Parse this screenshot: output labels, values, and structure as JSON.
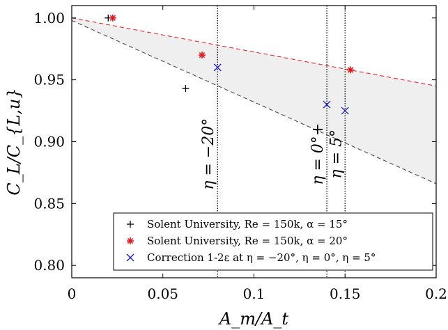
{
  "chart_data": {
    "type": "scatter",
    "xlabel": "A_m/A_t",
    "ylabel": "C_L/C_{L,u}",
    "xlim": [
      0,
      0.2
    ],
    "ylim": [
      0.79,
      1.01
    ],
    "x_ticks": [
      0,
      0.05,
      0.1,
      0.15,
      0.2
    ],
    "x_tick_labels": [
      "0",
      "0.05",
      "0.1",
      "0.15",
      "0.2"
    ],
    "y_ticks": [
      0.8,
      0.85,
      0.9,
      0.95,
      1.0
    ],
    "y_tick_labels": [
      "0.80",
      "0.85",
      "0.90",
      "0.95",
      "1.00"
    ],
    "grid": false,
    "legend_position": "bottom-right",
    "series": [
      {
        "name": "Solent University, Re = 150k, α = 15°",
        "marker": "plus",
        "color": "#000000",
        "points": [
          {
            "x": 0.02,
            "y": 1.0
          },
          {
            "x": 0.0625,
            "y": 0.943
          }
        ]
      },
      {
        "name": "Solent University, Re = 150k, α = 20°",
        "marker": "asterisk",
        "color": "#e8141c",
        "points": [
          {
            "x": 0.0225,
            "y": 1.0
          },
          {
            "x": 0.0715,
            "y": 0.97
          },
          {
            "x": 0.153,
            "y": 0.958
          }
        ]
      },
      {
        "name": "Correction 1-2ε at η = −20°, η = 0°, η = 5°",
        "marker": "x",
        "color": "#1c1cd0",
        "points": [
          {
            "x": 0.08,
            "y": 0.96
          },
          {
            "x": 0.14,
            "y": 0.93
          },
          {
            "x": 0.15,
            "y": 0.925
          }
        ]
      }
    ],
    "lines": [
      {
        "color": "#e8141c",
        "style": "dashed",
        "x": [
          0,
          0.2
        ],
        "y": [
          1.0,
          0.945
        ]
      },
      {
        "color": "#3a3a3a",
        "style": "dashed",
        "x": [
          0,
          0.2
        ],
        "y": [
          0.998,
          0.866
        ]
      }
    ],
    "shaded_region": {
      "between": "lines",
      "color": "#efefef"
    },
    "vertical_lines": [
      {
        "x": 0.08,
        "label": "η = −20°"
      },
      {
        "x": 0.14,
        "label": "η = 0°+"
      },
      {
        "x": 0.15,
        "label": "η = 5°"
      }
    ]
  }
}
